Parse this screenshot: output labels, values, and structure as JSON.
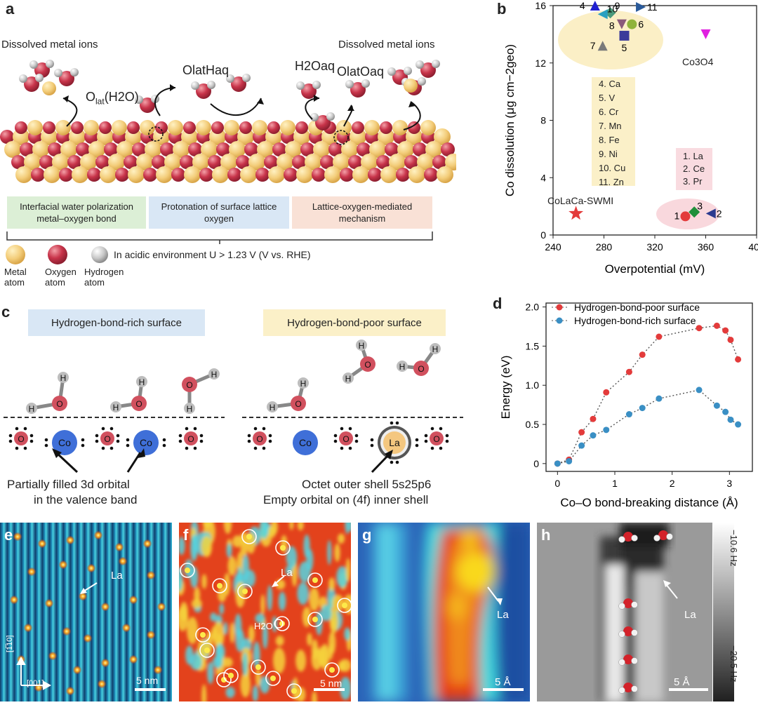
{
  "panel_a": {
    "label": "a",
    "dissolved_left": "Dissolved metal ions",
    "dissolved_right": "Dissolved metal ions",
    "olat_h2o": "O",
    "olat_h2o_sub": "lat",
    "olat_h2o_rest": "(H2O)",
    "olathaq": "OlatHaq",
    "h2oaq": "H2Oaq",
    "olatoaq": "OlatOaq",
    "boxes": [
      {
        "text": "Interfacial water polarization metal–oxygen bond",
        "color": "#dcefd6"
      },
      {
        "text": "Protonation of surface lattice oxygen",
        "color": "#d9e7f5"
      },
      {
        "text": "Lattice-oxygen-mediated mechanism",
        "color": "#f9e1d6"
      }
    ],
    "legend": {
      "metal": "Metal atom",
      "oxygen": "Oxygen atom",
      "hydrogen": "Hydrogen atom",
      "condition": "In acidic environment U > 1.23 V (V vs. RHE)"
    }
  },
  "panel_b": {
    "label": "b",
    "annot_left": [
      "4. Ca",
      "5. V",
      "6. Cr",
      "7. Mn",
      "8. Fe",
      "9. Ni",
      "10. Cu",
      "11. Zn"
    ],
    "annot_right": [
      "1. La",
      "2. Ce",
      "3. Pr"
    ],
    "colalaca": "CoLaCa-SWMI",
    "co3o4": "Co3O4",
    "chart_data": {
      "type": "scatter",
      "xlabel": "Overpotential (mV)",
      "ylabel": "Co dissolution (μg cm−2geo)",
      "xlim": [
        240,
        400
      ],
      "ylim": [
        0,
        16
      ],
      "xticks": [
        240,
        280,
        320,
        360,
        400
      ],
      "yticks": [
        0,
        4,
        8,
        12,
        16
      ],
      "points": [
        {
          "label": "1",
          "x": 344,
          "y": 1.3,
          "color": "#e33b3b",
          "marker": "circle"
        },
        {
          "label": "2",
          "x": 364,
          "y": 1.5,
          "color": "#2b3a8f",
          "marker": "triangle-left"
        },
        {
          "label": "3",
          "x": 351,
          "y": 1.6,
          "color": "#1f8f3a",
          "marker": "diamond"
        },
        {
          "label": "4",
          "x": 273,
          "y": 16.0,
          "color": "#2020d0",
          "marker": "triangle-up"
        },
        {
          "label": "5",
          "x": 296,
          "y": 13.9,
          "color": "#3b3b9a",
          "marker": "square"
        },
        {
          "label": "6",
          "x": 302,
          "y": 14.7,
          "color": "#8fb33b",
          "marker": "circle"
        },
        {
          "label": "7",
          "x": 279,
          "y": 13.2,
          "color": "#7a7a7a",
          "marker": "triangle-up"
        },
        {
          "label": "8",
          "x": 294,
          "y": 14.7,
          "color": "#8a5a7a",
          "marker": "triangle-down"
        },
        {
          "label": "9",
          "x": 285,
          "y": 15.5,
          "color": "#4a9a7a",
          "marker": "diamond"
        },
        {
          "label": "10",
          "x": 279,
          "y": 15.4,
          "color": "#2aa0c0",
          "marker": "triangle-left"
        },
        {
          "label": "11",
          "x": 309,
          "y": 15.9,
          "color": "#2a5a9a",
          "marker": "triangle-right"
        },
        {
          "label": "Co3O4",
          "x": 360,
          "y": 14.0,
          "color": "#e020e0",
          "marker": "triangle-down"
        },
        {
          "label": "CoLaCa-SWMI",
          "x": 258,
          "y": 1.5,
          "color": "#e33b3b",
          "marker": "star"
        }
      ]
    }
  },
  "panel_c": {
    "label": "c",
    "rich_title": "Hydrogen-bond-rich surface",
    "poor_title": "Hydrogen-bond-poor surface",
    "co": "Co",
    "la": "La",
    "o": "O",
    "h": "H",
    "caption_left_1": "Partially filled 3d orbital",
    "caption_left_2": "in the valence band",
    "caption_right_1": "Octet outer shell 5s25p6",
    "caption_right_2": "Empty orbital on (4f) inner shell"
  },
  "panel_d": {
    "label": "d",
    "chart_data": {
      "type": "line",
      "xlabel": "Co–O bond-breaking distance (Å)",
      "ylabel": "Energy (eV)",
      "xlim": [
        -0.2,
        3.4
      ],
      "ylim": [
        -0.1,
        2.05
      ],
      "xticks": [
        0,
        1,
        2,
        3
      ],
      "yticks": [
        0,
        0.5,
        1.0,
        1.5,
        2.0
      ],
      "yticklabels": [
        "0",
        "0.5",
        "1.0",
        "1.5",
        "2.0"
      ],
      "legend": "top-left",
      "series": [
        {
          "name": "Hydrogen-bond-poor surface",
          "color": "#e33b3b",
          "x": [
            0,
            0.2,
            0.42,
            0.62,
            0.85,
            1.25,
            1.48,
            1.77,
            2.47,
            2.78,
            2.93,
            3.02,
            3.15
          ],
          "y": [
            0,
            0.05,
            0.4,
            0.57,
            0.91,
            1.17,
            1.39,
            1.62,
            1.73,
            1.76,
            1.7,
            1.58,
            1.33
          ]
        },
        {
          "name": "Hydrogen-bond-rich surface",
          "color": "#3a8fc4",
          "x": [
            0,
            0.2,
            0.42,
            0.62,
            0.85,
            1.25,
            1.48,
            1.77,
            2.47,
            2.78,
            2.93,
            3.02,
            3.15
          ],
          "y": [
            0,
            0.03,
            0.23,
            0.36,
            0.43,
            0.63,
            0.71,
            0.83,
            0.94,
            0.74,
            0.66,
            0.56,
            0.5
          ]
        }
      ]
    }
  },
  "panel_e": {
    "label": "e",
    "la": "La",
    "scale": "5 nm",
    "axis1": "[1̅10]",
    "axis2": "[001]"
  },
  "panel_f": {
    "label": "f",
    "la": "La",
    "h2o": "H2O",
    "scale": "5 nm"
  },
  "panel_g": {
    "label": "g",
    "la": "La",
    "scale": "5 Å"
  },
  "panel_h": {
    "label": "h",
    "la": "La",
    "scale": "5 Å",
    "cbar_top": "−10.6 Hz",
    "cbar_bottom": "−20.5 Hz"
  }
}
